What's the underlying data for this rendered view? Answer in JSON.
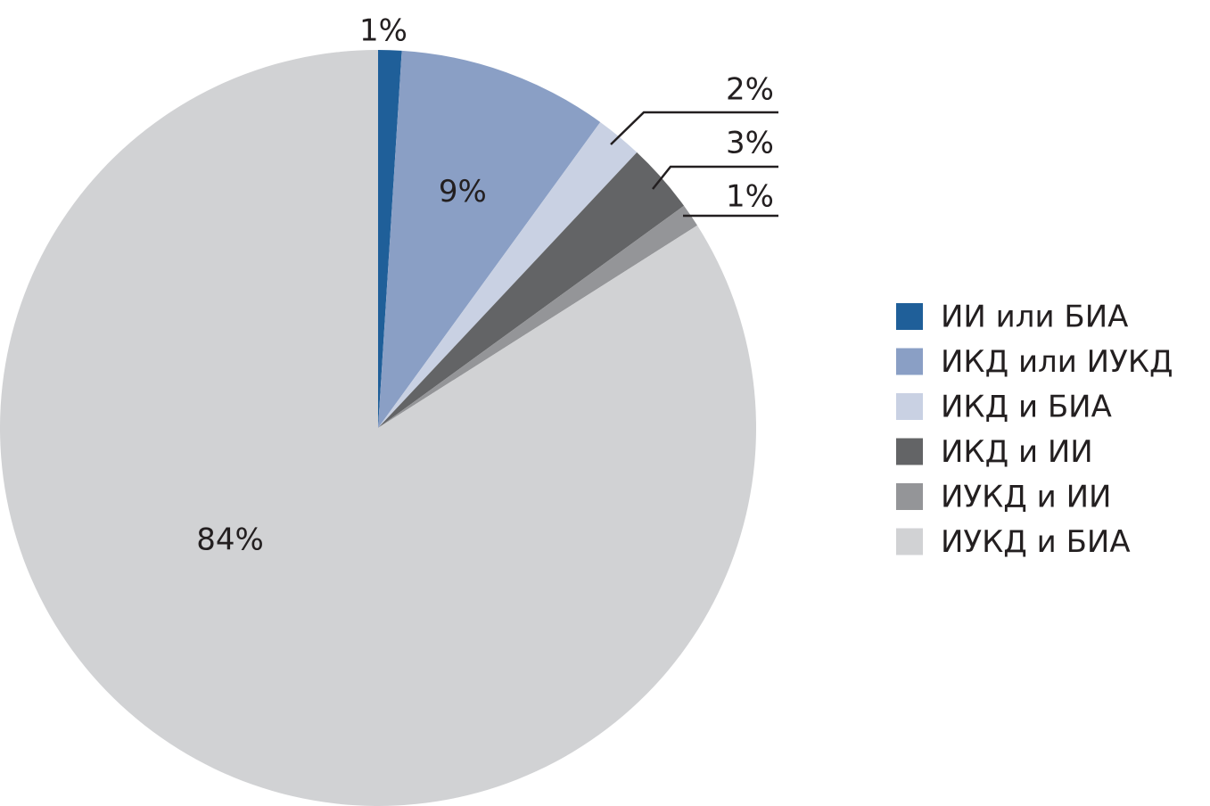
{
  "chart_data": {
    "type": "pie",
    "categories": [
      "ИИ или БИА",
      "ИКД или ИУКД",
      "ИКД и БИА",
      "ИКД и ИИ",
      "ИУКД и ИИ",
      "ИУКД и БИА"
    ],
    "values": [
      1,
      9,
      2,
      3,
      1,
      84
    ],
    "value_labels": [
      "1%",
      "9%",
      "2%",
      "3%",
      "1%",
      "84%"
    ],
    "colors": [
      "#1f5f99",
      "#8a9fc5",
      "#c9d1e3",
      "#636466",
      "#949598",
      "#d1d2d4"
    ],
    "legend": "right"
  }
}
